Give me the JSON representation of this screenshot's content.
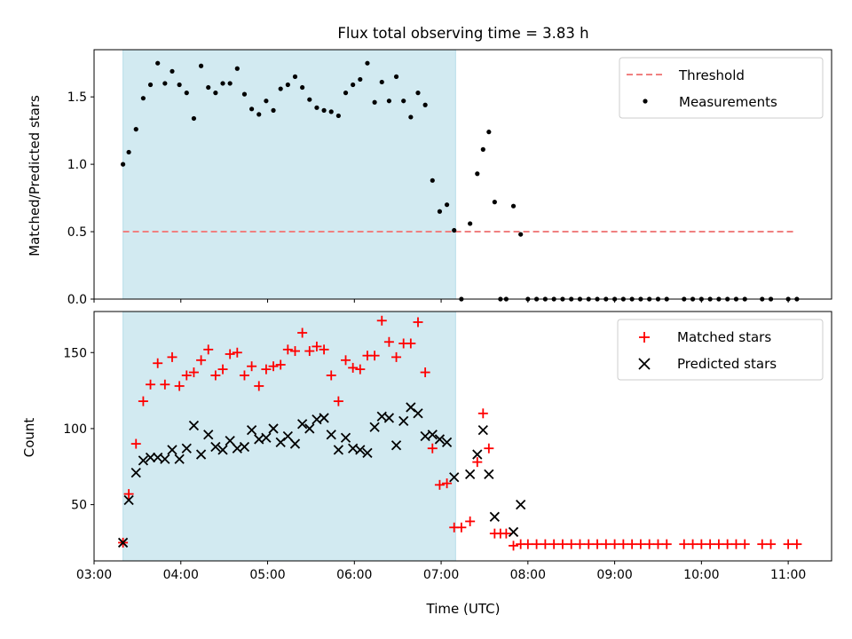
{
  "colors": {
    "shade": "#add8e6",
    "threshold": "#f08080",
    "measurement": "#000000",
    "matched": "#ff0000",
    "predicted": "#000000"
  },
  "chart_data": [
    {
      "type": "scatter",
      "title": "Flux total observing time = 3.83 h",
      "ylabel": "Matched/Predicted stars",
      "xlim": [
        "03:00",
        "11:30"
      ],
      "ylim": [
        0,
        1.85
      ],
      "yticks": [
        "0.0",
        "0.5",
        "1.0",
        "1.5"
      ],
      "shaded_interval": [
        "03:20",
        "07:10"
      ],
      "legend": {
        "placement": "upper right",
        "entries": [
          "Threshold",
          "Measurements"
        ]
      },
      "threshold": {
        "name": "Threshold",
        "y": 0.5,
        "x": [
          "03:20",
          "11:05"
        ]
      },
      "series": [
        {
          "name": "Measurements",
          "x": [
            "03:20",
            "03:24",
            "03:29",
            "03:34",
            "03:39",
            "03:44",
            "03:49",
            "03:54",
            "03:59",
            "04:04",
            "04:09",
            "04:14",
            "04:19",
            "04:24",
            "04:29",
            "04:34",
            "04:39",
            "04:44",
            "04:49",
            "04:54",
            "04:59",
            "05:04",
            "05:09",
            "05:14",
            "05:19",
            "05:24",
            "05:29",
            "05:34",
            "05:39",
            "05:44",
            "05:49",
            "05:54",
            "05:59",
            "06:04",
            "06:09",
            "06:14",
            "06:19",
            "06:24",
            "06:29",
            "06:34",
            "06:39",
            "06:44",
            "06:49",
            "06:54",
            "06:59",
            "07:04",
            "07:09",
            "07:14",
            "07:20",
            "07:25",
            "07:29",
            "07:33",
            "07:37",
            "07:41",
            "07:45",
            "07:50",
            "07:55",
            "08:00",
            "08:06",
            "08:12",
            "08:18",
            "08:24",
            "08:30",
            "08:36",
            "08:42",
            "08:48",
            "08:54",
            "09:00",
            "09:06",
            "09:12",
            "09:18",
            "09:24",
            "09:30",
            "09:36",
            "09:48",
            "09:54",
            "10:00",
            "10:06",
            "10:12",
            "10:18",
            "10:24",
            "10:30",
            "10:42",
            "10:48",
            "11:00",
            "11:06"
          ],
          "y": [
            1.0,
            1.09,
            1.26,
            1.49,
            1.59,
            1.75,
            1.6,
            1.69,
            1.59,
            1.53,
            1.34,
            1.73,
            1.57,
            1.53,
            1.6,
            1.6,
            1.71,
            1.52,
            1.41,
            1.37,
            1.47,
            1.4,
            1.56,
            1.59,
            1.65,
            1.57,
            1.48,
            1.42,
            1.4,
            1.39,
            1.36,
            1.53,
            1.59,
            1.63,
            1.75,
            1.46,
            1.61,
            1.47,
            1.65,
            1.47,
            1.35,
            1.53,
            1.44,
            0.88,
            0.65,
            0.7,
            0.51,
            0.0,
            0.56,
            0.93,
            1.11,
            1.24,
            0.72,
            0.0,
            0.0,
            0.69,
            0.48,
            0.0,
            0.0,
            0.0,
            0.0,
            0.0,
            0.0,
            0.0,
            0.0,
            0.0,
            0.0,
            0.0,
            0.0,
            0.0,
            0.0,
            0.0,
            0.0,
            0.0,
            0.0,
            0.0,
            0.0,
            0.0,
            0.0,
            0.0,
            0.0,
            0.0,
            0.0,
            0.0,
            0.0,
            0.0
          ]
        }
      ]
    },
    {
      "type": "scatter",
      "xlabel": "Time (UTC)",
      "ylabel": "Count",
      "xlim": [
        "03:00",
        "11:30"
      ],
      "ylim": [
        13,
        177
      ],
      "yticks": [
        "50",
        "100",
        "150"
      ],
      "xticks": [
        "03:00",
        "04:00",
        "05:00",
        "06:00",
        "07:00",
        "08:00",
        "09:00",
        "10:00",
        "11:00"
      ],
      "shaded_interval": [
        "03:20",
        "07:10"
      ],
      "legend": {
        "placement": "upper right",
        "entries": [
          "Matched stars",
          "Predicted stars"
        ]
      },
      "series": [
        {
          "name": "Matched stars",
          "marker": "+",
          "x": [
            "03:20",
            "03:24",
            "03:29",
            "03:34",
            "03:39",
            "03:44",
            "03:49",
            "03:54",
            "03:59",
            "04:04",
            "04:09",
            "04:14",
            "04:19",
            "04:24",
            "04:29",
            "04:34",
            "04:39",
            "04:44",
            "04:49",
            "04:54",
            "04:59",
            "05:04",
            "05:09",
            "05:14",
            "05:19",
            "05:24",
            "05:29",
            "05:34",
            "05:39",
            "05:44",
            "05:49",
            "05:54",
            "05:59",
            "06:04",
            "06:09",
            "06:14",
            "06:19",
            "06:24",
            "06:29",
            "06:34",
            "06:39",
            "06:44",
            "06:49",
            "06:54",
            "06:59",
            "07:04",
            "07:09",
            "07:14",
            "07:20",
            "07:25",
            "07:29",
            "07:33",
            "07:37",
            "07:41",
            "07:45",
            "07:50",
            "07:55",
            "08:00",
            "08:06",
            "08:12",
            "08:18",
            "08:24",
            "08:30",
            "08:36",
            "08:42",
            "08:48",
            "08:54",
            "09:00",
            "09:06",
            "09:12",
            "09:18",
            "09:24",
            "09:30",
            "09:36",
            "09:48",
            "09:54",
            "10:00",
            "10:06",
            "10:12",
            "10:18",
            "10:24",
            "10:30",
            "10:42",
            "10:48",
            "11:00",
            "11:06"
          ],
          "y": [
            25,
            57,
            90,
            118,
            129,
            143,
            129,
            147,
            128,
            135,
            137,
            145,
            152,
            135,
            139,
            149,
            150,
            135,
            141,
            128,
            139,
            141,
            142,
            152,
            151,
            163,
            151,
            154,
            152,
            135,
            118,
            145,
            140,
            139,
            148,
            148,
            171,
            157,
            147,
            156,
            156,
            170,
            137,
            87,
            63,
            64,
            35,
            35,
            39,
            78,
            110,
            87,
            31,
            31,
            31,
            23,
            24,
            24,
            24,
            24,
            24,
            24,
            24,
            24,
            24,
            24,
            24,
            24,
            24,
            24,
            24,
            24,
            24,
            24,
            24,
            24,
            24,
            24,
            24,
            24,
            24,
            24,
            24,
            24,
            24,
            24
          ]
        },
        {
          "name": "Predicted stars",
          "marker": "x",
          "x": [
            "03:20",
            "03:24",
            "03:29",
            "03:34",
            "03:39",
            "03:44",
            "03:49",
            "03:54",
            "03:59",
            "04:04",
            "04:09",
            "04:14",
            "04:19",
            "04:24",
            "04:29",
            "04:34",
            "04:39",
            "04:44",
            "04:49",
            "04:54",
            "04:59",
            "05:04",
            "05:09",
            "05:14",
            "05:19",
            "05:24",
            "05:29",
            "05:34",
            "05:39",
            "05:44",
            "05:49",
            "05:54",
            "05:59",
            "06:04",
            "06:09",
            "06:14",
            "06:19",
            "06:24",
            "06:29",
            "06:34",
            "06:39",
            "06:44",
            "06:49",
            "06:54",
            "06:59",
            "07:04",
            "07:09",
            "07:20",
            "07:25",
            "07:29",
            "07:33",
            "07:37",
            "07:50",
            "07:55"
          ],
          "y": [
            25,
            53,
            71,
            79,
            81,
            81,
            80,
            86,
            80,
            87,
            102,
            83,
            96,
            88,
            86,
            92,
            87,
            88,
            99,
            93,
            94,
            100,
            91,
            95,
            90,
            103,
            100,
            106,
            107,
            96,
            86,
            94,
            87,
            86,
            84,
            101,
            108,
            107,
            89,
            105,
            114,
            110,
            95,
            96,
            93,
            91,
            68,
            70,
            83,
            99,
            70,
            42,
            32,
            50
          ]
        }
      ]
    }
  ]
}
